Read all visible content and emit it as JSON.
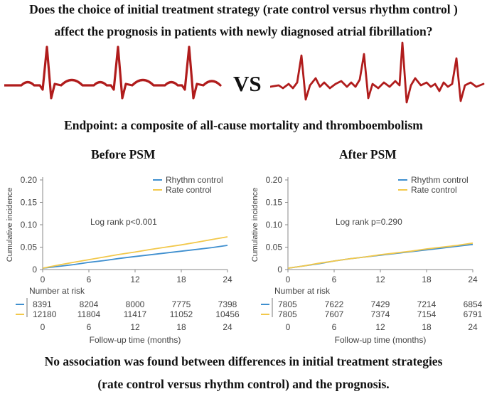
{
  "header": {
    "question_line1": "Does the choice of initial treatment strategy (rate control versus rhythm control )",
    "question_line2": "affect the prognosis in patients with newly diagnosed atrial fibrillation?",
    "vs_label": "VS",
    "endpoint": "Endpoint: a composite of all-cause mortality and thromboembolism"
  },
  "conclusion": {
    "line1": "No association was found between differences in initial treatment strategies",
    "line2": "(rate control versus rhythm control) and the prognosis."
  },
  "colors": {
    "rhythm": "#3f8fcf",
    "rate": "#f2c84b",
    "ecg": "#b01c1c"
  },
  "chart_data": [
    {
      "type": "line",
      "title": "Before PSM",
      "ylabel": "Cumulative incidence",
      "xlabel": "Follow-up time (months)",
      "xlim": [
        0,
        24
      ],
      "ylim": [
        0,
        0.2
      ],
      "xticks": [
        0,
        6,
        12,
        18,
        24
      ],
      "yticks": [
        0,
        0.05,
        0.1,
        0.15,
        0.2
      ],
      "ytick_labels": [
        "0",
        "0.05",
        "0.10",
        "0.15",
        "0.20"
      ],
      "annotation": "Log rank p<0.001",
      "legend_position": "top-right",
      "series": [
        {
          "name": "Rhythm control",
          "color": "#3f8fcf",
          "x": [
            0,
            2,
            4,
            6,
            8,
            10,
            12,
            14,
            16,
            18,
            20,
            22,
            24
          ],
          "y": [
            0.003,
            0.007,
            0.011,
            0.016,
            0.02,
            0.025,
            0.029,
            0.033,
            0.037,
            0.041,
            0.045,
            0.049,
            0.054
          ]
        },
        {
          "name": "Rate control",
          "color": "#f2c84b",
          "x": [
            0,
            2,
            4,
            6,
            8,
            10,
            12,
            14,
            16,
            18,
            20,
            22,
            24
          ],
          "y": [
            0.003,
            0.01,
            0.016,
            0.022,
            0.028,
            0.034,
            0.039,
            0.045,
            0.05,
            0.055,
            0.061,
            0.067,
            0.073
          ]
        }
      ],
      "risk_table": {
        "title": "Number at risk",
        "times": [
          0,
          6,
          12,
          18,
          24
        ],
        "rows": [
          {
            "color": "#3f8fcf",
            "values": [
              "8391",
              "8204",
              "8000",
              "7775",
              "7398"
            ]
          },
          {
            "color": "#f2c84b",
            "values": [
              "12180",
              "11804",
              "11417",
              "11052",
              "10456"
            ]
          }
        ]
      }
    },
    {
      "type": "line",
      "title": "After PSM",
      "ylabel": "Cumulative incidence",
      "xlabel": "Follow-up time (months)",
      "xlim": [
        0,
        24
      ],
      "ylim": [
        0,
        0.2
      ],
      "xticks": [
        0,
        6,
        12,
        18,
        24
      ],
      "yticks": [
        0,
        0.05,
        0.1,
        0.15,
        0.2
      ],
      "ytick_labels": [
        "0",
        "0.05",
        "0.10",
        "0.15",
        "0.20"
      ],
      "annotation": "Log rank p=0.290",
      "legend_position": "top-right",
      "series": [
        {
          "name": "Rhythm control",
          "color": "#3f8fcf",
          "x": [
            0,
            2,
            4,
            6,
            8,
            10,
            12,
            14,
            16,
            18,
            20,
            22,
            24
          ],
          "y": [
            0.003,
            0.008,
            0.013,
            0.019,
            0.024,
            0.028,
            0.032,
            0.036,
            0.04,
            0.044,
            0.048,
            0.052,
            0.056
          ]
        },
        {
          "name": "Rate control",
          "color": "#f2c84b",
          "x": [
            0,
            2,
            4,
            6,
            8,
            10,
            12,
            14,
            16,
            18,
            20,
            22,
            24
          ],
          "y": [
            0.003,
            0.008,
            0.014,
            0.019,
            0.024,
            0.028,
            0.033,
            0.037,
            0.041,
            0.046,
            0.05,
            0.054,
            0.059
          ]
        }
      ],
      "risk_table": {
        "title": "Number at risk",
        "times": [
          0,
          6,
          12,
          18,
          24
        ],
        "rows": [
          {
            "color": "#3f8fcf",
            "values": [
              "7805",
              "7622",
              "7429",
              "7214",
              "6854"
            ]
          },
          {
            "color": "#f2c84b",
            "values": [
              "7805",
              "7607",
              "7374",
              "7154",
              "6791"
            ]
          }
        ]
      }
    }
  ]
}
